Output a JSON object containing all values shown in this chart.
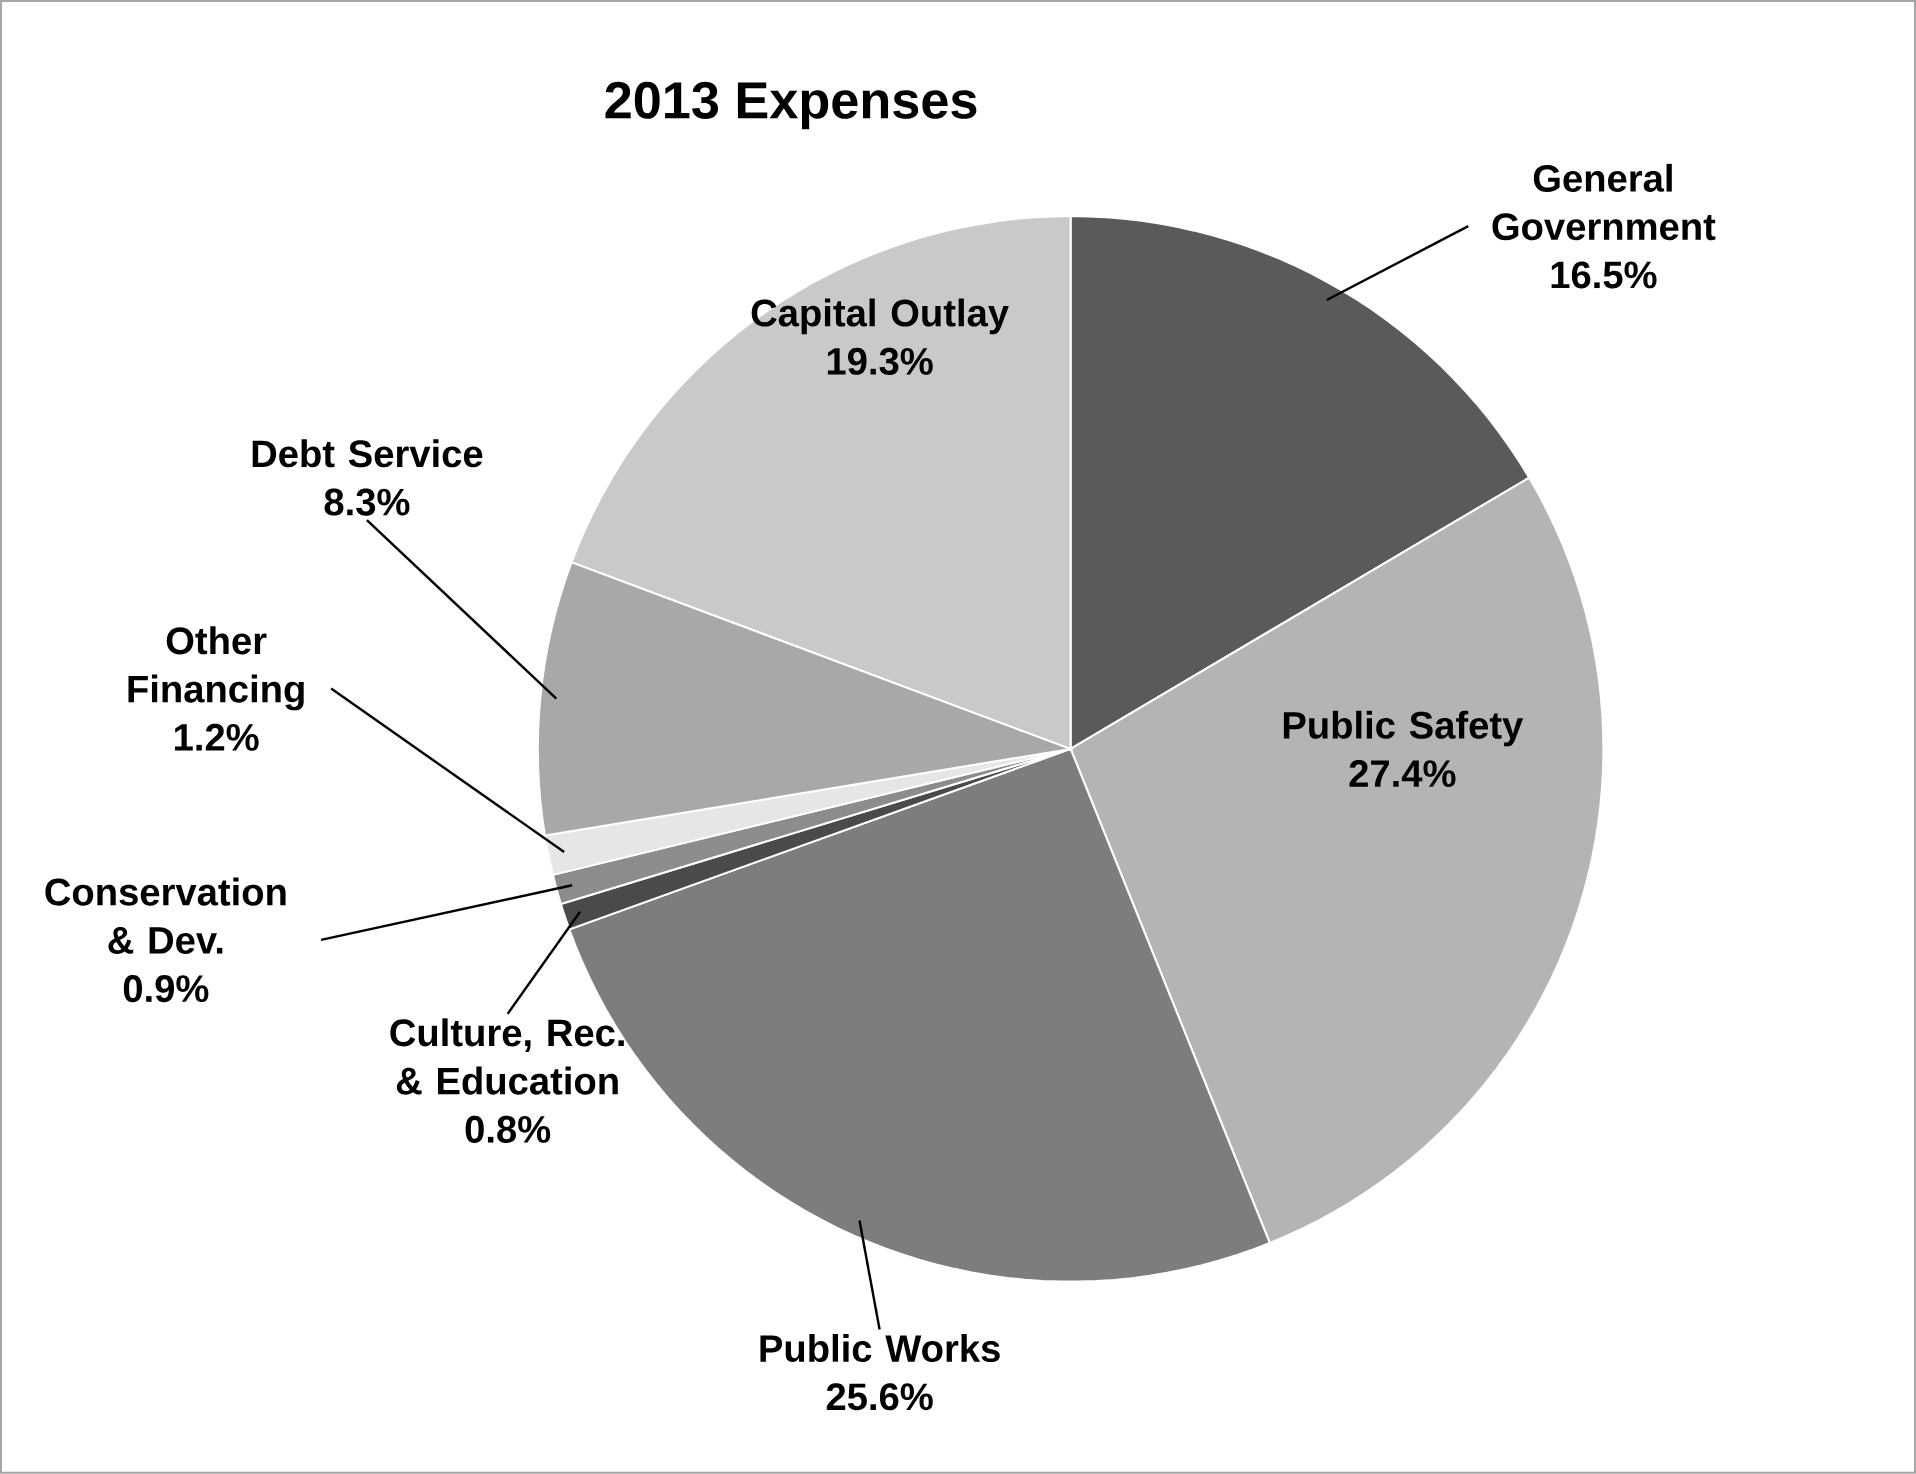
{
  "chart_data": {
    "type": "pie",
    "title": "2013 Expenses",
    "categories": [
      "General Government",
      "Public Safety",
      "Public Works",
      "Culture, Rec. & Education",
      "Conservation & Dev.",
      "Other Financing",
      "Debt Service",
      "Capital Outlay"
    ],
    "values": [
      16.5,
      27.4,
      25.6,
      0.8,
      0.9,
      1.2,
      8.3,
      19.3
    ],
    "value_labels": [
      "16.5%",
      "27.4%",
      "25.6%",
      "0.8%",
      "0.9%",
      "1.2%",
      "8.3%",
      "19.3%"
    ],
    "colors": [
      "#5a5a5a",
      "#b4b4b4",
      "#7d7d7d",
      "#4a4a4a",
      "#8c8c8c",
      "#e6e6e6",
      "#a8a8a8",
      "#c9c9c9"
    ],
    "legend": false
  }
}
